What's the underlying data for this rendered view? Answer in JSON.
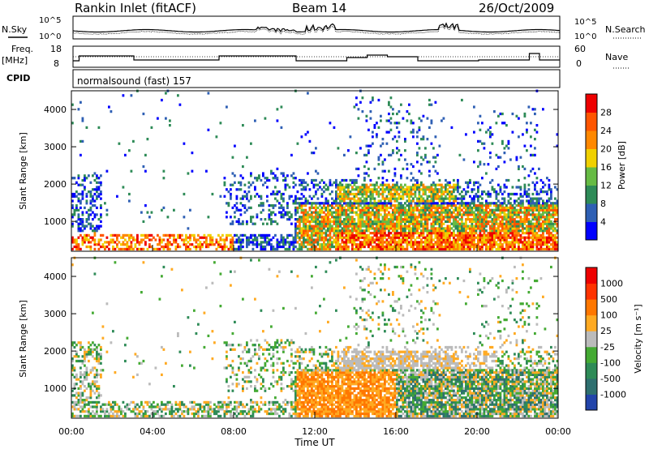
{
  "header": {
    "station": "Rankin Inlet (fitACF)",
    "beam": "Beam 14",
    "date": "26/Oct/2009"
  },
  "summary": {
    "nsky_label": "N.Sky",
    "nsearch_label": "N.Search",
    "noise_ticks": [
      "10^5",
      "10^0"
    ],
    "freq_label": "Freq.",
    "freq_unit": "[MHz]",
    "freq_ticks": [
      "18",
      "8"
    ],
    "nave_label": "Nave",
    "nave_ticks": [
      "60",
      "0"
    ],
    "cpid_label": "CPID",
    "cpid_value": "normalsound (fast) 157"
  },
  "chart_data": [
    {
      "type": "heatmap",
      "name": "power",
      "ylabel": "Slant Range [km]",
      "ylim": [
        200,
        4500
      ],
      "yticks": [
        1000,
        2000,
        3000,
        4000
      ],
      "xlim": [
        0,
        24
      ],
      "colorbar": {
        "label": "Power [dB]",
        "ticks": [
          "28",
          "24",
          "20",
          "16",
          "12",
          "8",
          "4"
        ],
        "colors": [
          "#0000ff",
          "#2e5fb4",
          "#2e8b57",
          "#66bb44",
          "#f0d000",
          "#ff8800",
          "#ff5500",
          "#ee0000"
        ]
      }
    },
    {
      "type": "heatmap",
      "name": "velocity",
      "ylabel": "Slant Range [km]",
      "ylim": [
        200,
        4500
      ],
      "yticks": [
        1000,
        2000,
        3000,
        4000
      ],
      "xlim": [
        0,
        24
      ],
      "xlabel": "Time UT",
      "xticks": [
        "00:00",
        "04:00",
        "08:00",
        "12:00",
        "16:00",
        "20:00",
        "00:00"
      ],
      "colorbar": {
        "label": "Velocity [m s⁻¹]",
        "ticks": [
          "1000",
          "500",
          "100",
          "25",
          "-25",
          "-100",
          "-500",
          "-1000"
        ],
        "colors": [
          "#2244aa",
          "#2e6f6f",
          "#2e8b57",
          "#44aa33",
          "#bbbbbb",
          "#ffaa22",
          "#ff7700",
          "#ff3300",
          "#ee0000"
        ]
      }
    }
  ]
}
